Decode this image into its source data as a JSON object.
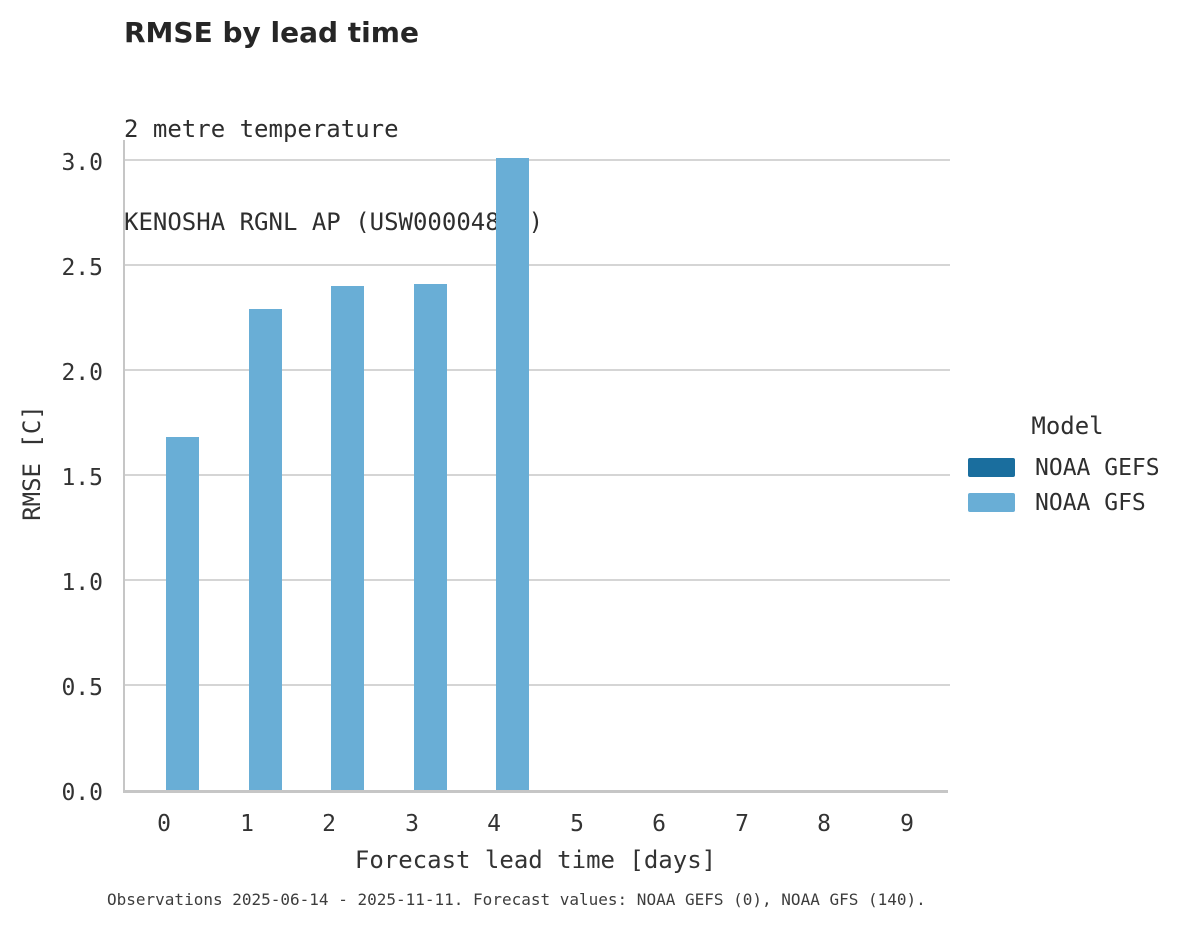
{
  "header": {
    "title": "RMSE by lead time",
    "subtitle_lines": [
      "2 metre temperature",
      "KENOSHA RGNL AP (USW00004845)"
    ]
  },
  "chart_data": {
    "type": "bar",
    "title": "RMSE by lead time",
    "subtitle": "2 metre temperature",
    "station": "KENOSHA RGNL AP (USW00004845)",
    "xlabel": "Forecast lead time [days]",
    "ylabel": "RMSE [C]",
    "categories": [
      "0",
      "1",
      "2",
      "3",
      "4",
      "5",
      "6",
      "7",
      "8",
      "9"
    ],
    "y_ticks": [
      0.0,
      0.5,
      1.0,
      1.5,
      2.0,
      2.5,
      3.0
    ],
    "ylim": [
      0,
      3.11
    ],
    "grid": true,
    "legend": {
      "title": "Model",
      "position": "right-outside"
    },
    "series": [
      {
        "name": "NOAA GEFS",
        "color": "#1a6e9e",
        "values": [
          null,
          null,
          null,
          null,
          null,
          null,
          null,
          null,
          null,
          null
        ]
      },
      {
        "name": "NOAA GFS",
        "color": "#69aed6",
        "values": [
          1.68,
          2.29,
          2.4,
          2.41,
          3.01,
          null,
          null,
          null,
          null,
          null
        ]
      }
    ]
  },
  "footer": {
    "caption": "Observations 2025-06-14 - 2025-11-11. Forecast values: NOAA GEFS (0), NOAA GFS (140)."
  }
}
